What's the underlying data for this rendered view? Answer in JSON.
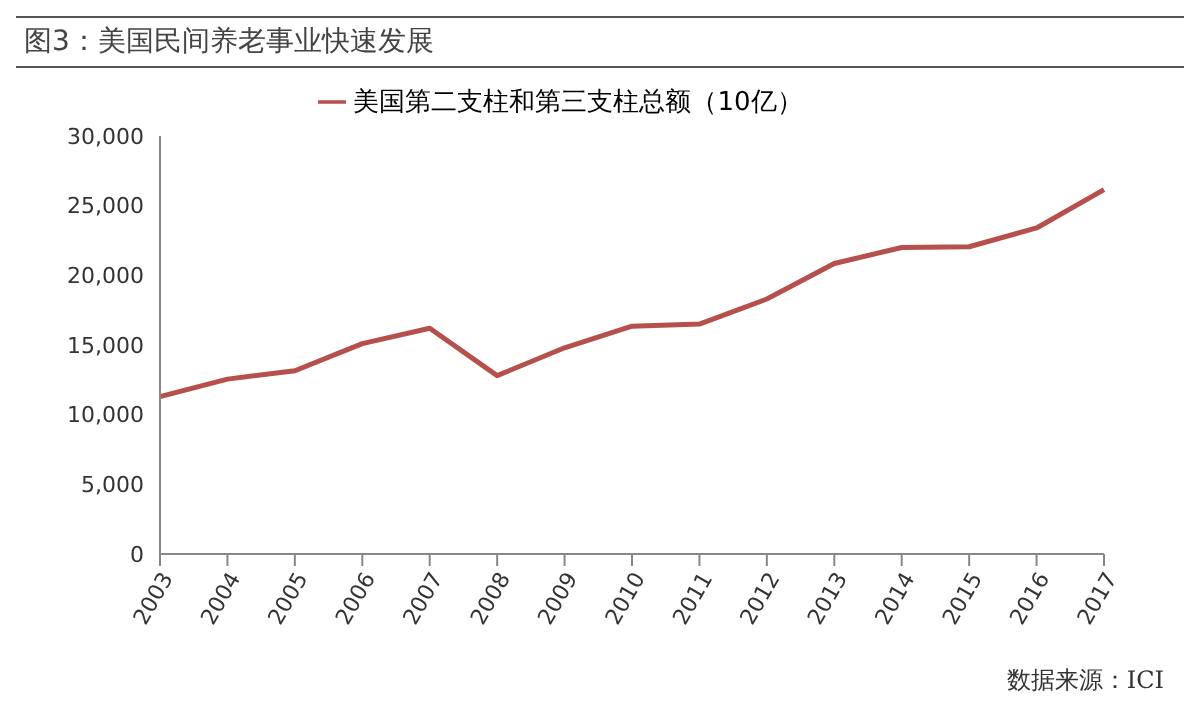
{
  "chart_data": {
    "type": "line",
    "title": "图3：美国民间养老事业快速发展",
    "categories": [
      "2003",
      "2004",
      "2005",
      "2006",
      "2007",
      "2008",
      "2009",
      "2010",
      "2011",
      "2012",
      "2013",
      "2014",
      "2015",
      "2016",
      "2017"
    ],
    "series": [
      {
        "name": "美国第二支柱和第三支柱总额（10亿）",
        "color": "#b5504c",
        "values": [
          11300,
          12550,
          13150,
          15100,
          16200,
          12800,
          14800,
          16350,
          16500,
          18300,
          20850,
          22000,
          22050,
          23400,
          26150
        ]
      }
    ],
    "ylim": [
      0,
      30000
    ],
    "yticks": [
      {
        "value": 0,
        "label": "0"
      },
      {
        "value": 5000,
        "label": "5,000"
      },
      {
        "value": 10000,
        "label": "10,000"
      },
      {
        "value": 15000,
        "label": "15,000"
      },
      {
        "value": 20000,
        "label": "20,000"
      },
      {
        "value": 25000,
        "label": "25,000"
      },
      {
        "value": 30000,
        "label": "30,000"
      }
    ],
    "grid": false,
    "legend": "top",
    "marker": "none",
    "line_style": "solid",
    "annotations": [
      "数据来源：ICI"
    ]
  }
}
